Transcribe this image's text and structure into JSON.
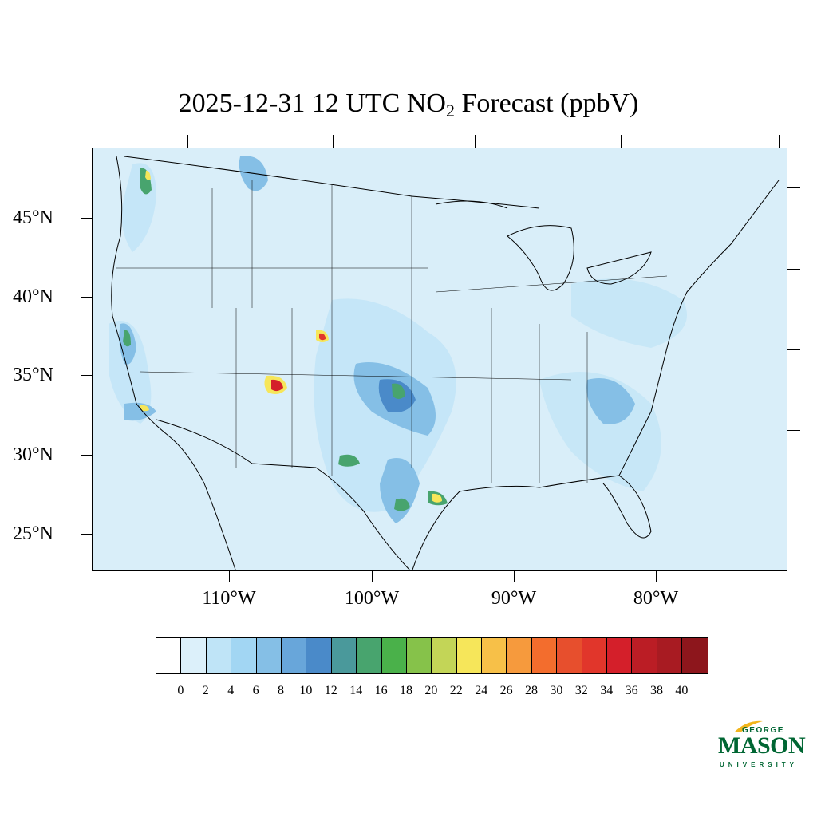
{
  "title": {
    "prefix": "2025-12-31 12 UTC NO",
    "subscript": "2",
    "suffix": " Forecast (ppbV)"
  },
  "axes": {
    "lat_labels": [
      "45°N",
      "40°N",
      "35°N",
      "30°N",
      "25°N"
    ],
    "lon_labels": [
      "110°W",
      "100°W",
      "90°W",
      "80°W"
    ]
  },
  "colorbar": {
    "colors": [
      "#ffffff",
      "#dcf0fa",
      "#bfe4f7",
      "#a2d6f3",
      "#85bfe6",
      "#68a6da",
      "#4a8ac9",
      "#4a999b",
      "#48a46e",
      "#4ab14a",
      "#86c24a",
      "#c3d557",
      "#f6e65a",
      "#f7c048",
      "#f69a3d",
      "#f36d2d",
      "#e74f2d",
      "#e1362b",
      "#d41f2a",
      "#bb1d25",
      "#a81b22",
      "#8d161c"
    ],
    "tick_labels": [
      "0",
      "2",
      "4",
      "6",
      "8",
      "10",
      "12",
      "14",
      "16",
      "18",
      "20",
      "22",
      "24",
      "26",
      "28",
      "30",
      "32",
      "34",
      "36",
      "38",
      "40"
    ]
  },
  "map": {
    "background_color": "#d9eef9",
    "hotspot_colors": {
      "light": "#bfe4f7",
      "medium": "#85bfe6",
      "strong": "#4a8ac9",
      "green": "#48a46e",
      "yellow": "#f6e65a",
      "red": "#d41f2a"
    }
  },
  "logo": {
    "line1": "GEORGE",
    "line2": "MASON",
    "line3": "UNIVERSITY",
    "color": "#006633"
  }
}
